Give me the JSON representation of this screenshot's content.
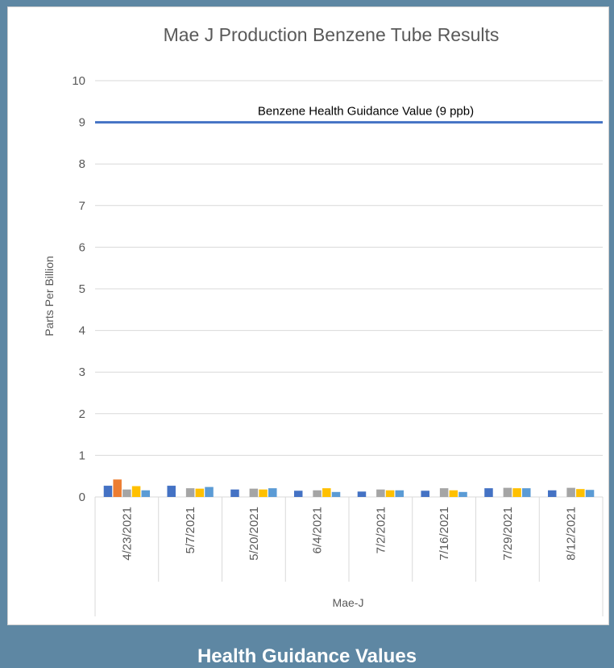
{
  "chart_data": {
    "type": "bar",
    "title": "Mae J Production Benzene Tube Results",
    "ylabel": "Parts Per Billion",
    "xlabel": "",
    "group_label": "Mae-J",
    "ylim": [
      0,
      10
    ],
    "yticks": [
      0,
      1,
      2,
      3,
      4,
      5,
      6,
      7,
      8,
      9,
      10
    ],
    "grid": true,
    "legend": "none",
    "categories": [
      "4/23/2021",
      "5/7/2021",
      "5/20/2021",
      "6/4/2021",
      "7/2/2021",
      "7/16/2021",
      "7/29/2021",
      "8/12/2021"
    ],
    "series": [
      {
        "color": "#4472c4",
        "values": [
          0.27,
          0.27,
          0.18,
          0.15,
          0.13,
          0.15,
          0.21,
          0.16
        ]
      },
      {
        "color": "#ed7d31",
        "values": [
          0.42,
          null,
          null,
          null,
          null,
          null,
          null,
          null
        ]
      },
      {
        "color": "#a5a5a5",
        "values": [
          0.18,
          0.21,
          0.2,
          0.16,
          0.18,
          0.21,
          0.22,
          0.22
        ]
      },
      {
        "color": "#ffc000",
        "values": [
          0.26,
          0.2,
          0.18,
          0.21,
          0.16,
          0.16,
          0.21,
          0.19
        ]
      },
      {
        "color": "#5b9bd5",
        "values": [
          0.16,
          0.24,
          0.21,
          0.12,
          0.16,
          0.12,
          0.21,
          0.17
        ]
      }
    ],
    "reference_line": {
      "value": 9,
      "label": "Benzene Health Guidance Value (9 ppb)",
      "color": "#4472c4"
    }
  },
  "footer": {
    "caption": "Health Guidance Values"
  }
}
